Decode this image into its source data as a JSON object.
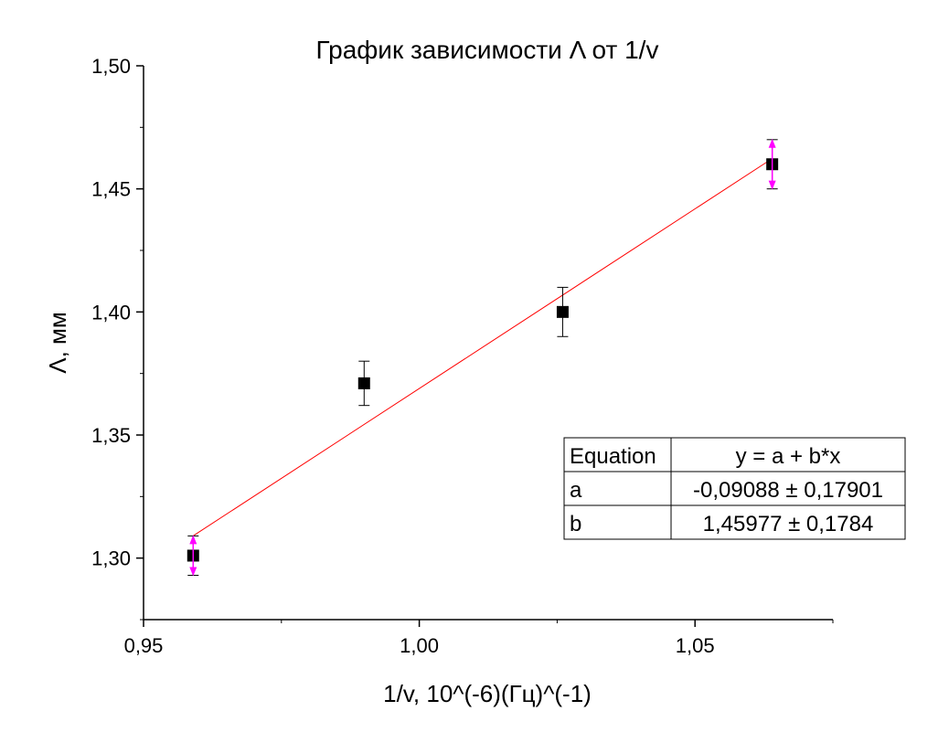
{
  "chart_data": {
    "type": "scatter",
    "title": "График зависимости Λ от 1/v",
    "xlabel": "1/v, 10^(-6)(Гц)^(-1)",
    "ylabel": "Λ, мм",
    "xlim": [
      0.95,
      1.075
    ],
    "ylim": [
      1.275,
      1.5
    ],
    "x_ticks": [
      0.95,
      1.0,
      1.05
    ],
    "x_tick_labels": [
      "0,95",
      "1,00",
      "1,05"
    ],
    "y_ticks": [
      1.3,
      1.35,
      1.4,
      1.45,
      1.5
    ],
    "y_tick_labels": [
      "1,30",
      "1,35",
      "1,40",
      "1,45",
      "1,50"
    ],
    "grid": false,
    "series": [
      {
        "points": [
          {
            "x": 0.959,
            "y": 1.301,
            "err": 0.008
          },
          {
            "x": 0.99,
            "y": 1.371,
            "err": 0.009
          },
          {
            "x": 1.026,
            "y": 1.4,
            "err": 0.01
          },
          {
            "x": 1.064,
            "y": 1.46,
            "err": 0.01
          }
        ],
        "marker_color": "#000000",
        "highlighted_error_bar_color": "#ff00ff",
        "highlighted_points": [
          0,
          3
        ]
      }
    ],
    "fit_line": {
      "x": [
        0.959,
        1.064
      ],
      "a": -0.09088,
      "b": 1.45977,
      "color": "#ff0000"
    },
    "fit_table": {
      "rows": [
        [
          "Equation",
          "y = a + b*x"
        ],
        [
          "a",
          "-0,09088 ± 0,17901"
        ],
        [
          "b",
          "1,45977 ± 0,1784"
        ]
      ]
    }
  }
}
